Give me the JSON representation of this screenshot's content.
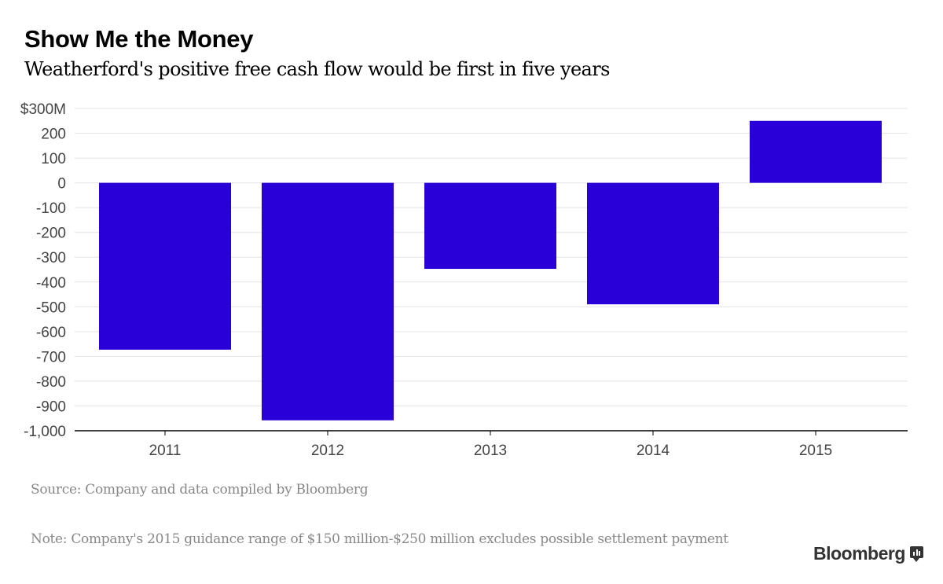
{
  "chart_data": {
    "type": "bar",
    "title": "Show Me the Money",
    "subtitle": "Weatherford's positive free cash flow would be first in five years",
    "categories": [
      "2011",
      "2012",
      "2013",
      "2014",
      "2015"
    ],
    "values": [
      -673,
      -958,
      -347,
      -490,
      250
    ],
    "ylim": [
      -1000,
      300
    ],
    "yticks": [
      300,
      200,
      100,
      0,
      -100,
      -200,
      -300,
      -400,
      -500,
      -600,
      -700,
      -800,
      -900,
      -1000
    ],
    "ytick_labels": [
      "$300M",
      "200",
      "100",
      "0",
      "-100",
      "-200",
      "-300",
      "-400",
      "-500",
      "-600",
      "-700",
      "-800",
      "-900",
      "-1,000"
    ],
    "xlabel": "",
    "ylabel": "",
    "grid": true,
    "bar_color": "#2a00d9",
    "source": "Source: Company and data compiled by Bloomberg",
    "note": "Note: Company's 2015 guidance range of $150 million-$250 million excludes possible settlement payment"
  },
  "brand": "Bloomberg"
}
